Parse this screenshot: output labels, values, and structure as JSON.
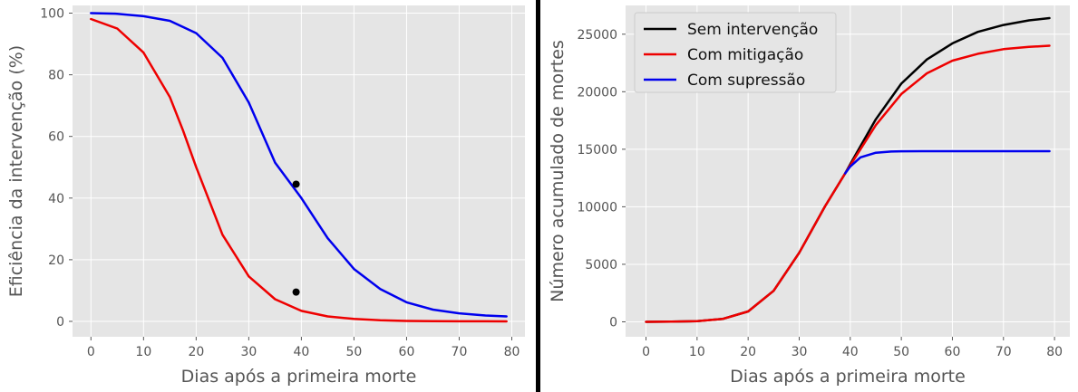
{
  "chart_data": [
    {
      "type": "line",
      "xlabel": "Dias após a primeira morte",
      "ylabel": "Eficiência da intervenção (%)",
      "xlim": [
        -3.5,
        82.5
      ],
      "ylim": [
        -5,
        102.5
      ],
      "xticks": [
        0,
        10,
        20,
        30,
        40,
        50,
        60,
        70,
        80
      ],
      "yticks": [
        0,
        20,
        40,
        60,
        80,
        100
      ],
      "grid": true,
      "legend": "none",
      "series": [
        {
          "color": "#ee0000",
          "x": [
            0,
            5,
            10,
            15,
            17.5,
            20,
            25,
            30,
            35,
            40,
            45,
            50,
            55,
            60,
            65,
            70,
            75,
            79
          ],
          "values": [
            98.1,
            95,
            87.2,
            72.8,
            62,
            50,
            28.1,
            14.6,
            7.2,
            3.4,
            1.6,
            0.8,
            0.35,
            0.15,
            0.07,
            0.03,
            0.01,
            0
          ]
        },
        {
          "color": "#0000ee",
          "x": [
            0,
            5,
            10,
            15,
            20,
            25,
            30,
            35,
            40,
            45,
            50,
            55,
            60,
            65,
            70,
            75,
            79
          ],
          "values": [
            100,
            99.8,
            99,
            97.5,
            93.5,
            85.5,
            71,
            51.5,
            40,
            27,
            17,
            10.5,
            6.2,
            3.8,
            2.6,
            1.9,
            1.6
          ]
        }
      ],
      "markers": [
        {
          "x": 39,
          "y": 44.5,
          "color": "#000000"
        },
        {
          "x": 39,
          "y": 9.5,
          "color": "#000000"
        }
      ]
    },
    {
      "type": "line",
      "xlabel": "Dias após a primeira morte",
      "ylabel": "Número acumulado de mortes",
      "xlim": [
        -4,
        83
      ],
      "ylim": [
        -1300,
        27500
      ],
      "xticks": [
        0,
        10,
        20,
        30,
        40,
        50,
        60,
        70,
        80
      ],
      "yticks": [
        0,
        5000,
        10000,
        15000,
        20000,
        25000
      ],
      "grid": true,
      "legend": "top-left",
      "series": [
        {
          "name": "Sem intervenção",
          "color": "#000000",
          "x": [
            0,
            5,
            10,
            15,
            20,
            25,
            30,
            35,
            39,
            40,
            45,
            50,
            55,
            60,
            65,
            70,
            75,
            79
          ],
          "values": [
            0,
            15,
            50,
            250,
            900,
            2700,
            6000,
            10000,
            12900,
            13700,
            17600,
            20700,
            22800,
            24200,
            25200,
            25800,
            26200,
            26400
          ]
        },
        {
          "name": "Com mitigação",
          "color": "#ee0000",
          "x": [
            0,
            5,
            10,
            15,
            20,
            25,
            30,
            35,
            39,
            40,
            45,
            50,
            55,
            60,
            65,
            70,
            75,
            79
          ],
          "values": [
            0,
            15,
            50,
            250,
            900,
            2700,
            6000,
            10000,
            12900,
            13600,
            17100,
            19800,
            21600,
            22700,
            23300,
            23700,
            23900,
            24000
          ]
        },
        {
          "name": "Com supressão",
          "color": "#0000ee",
          "x": [
            39,
            40,
            42,
            45,
            48,
            50,
            55,
            60,
            70,
            79
          ],
          "values": [
            12900,
            13500,
            14300,
            14700,
            14800,
            14820,
            14830,
            14830,
            14830,
            14830
          ]
        }
      ]
    }
  ]
}
